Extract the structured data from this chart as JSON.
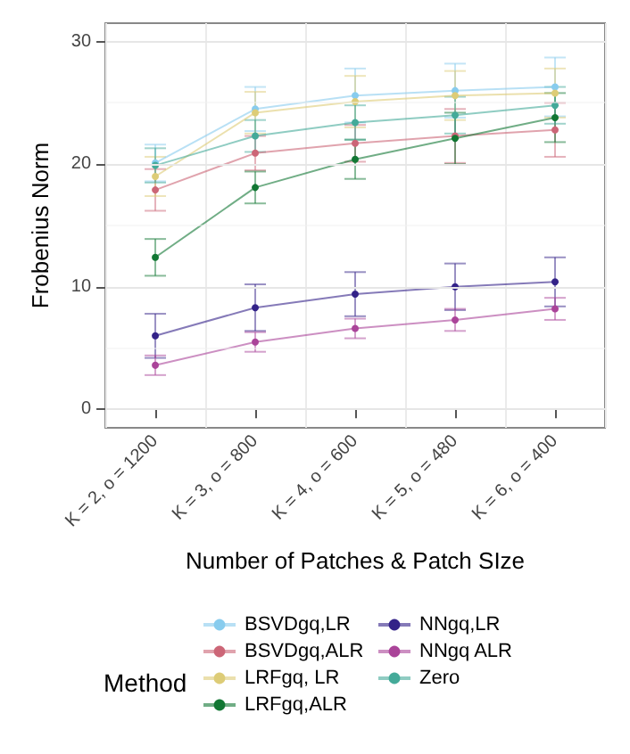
{
  "chart_data": {
    "type": "line",
    "xlabel": "Number of Patches & Patch SIze",
    "ylabel": "Frobenius Norm",
    "legend_title": "Method",
    "legend": "bottom",
    "grid": true,
    "marker": "circle",
    "line_style": "solid",
    "categories": [
      "K = 2, o = 1200",
      "K = 3, o = 800",
      "K = 4, o = 600",
      "K = 5, o = 480",
      "K = 6, o = 400"
    ],
    "ylim": [
      -1.5,
      31.5
    ],
    "yticks": [
      0,
      10,
      20,
      30
    ],
    "series": [
      {
        "name": "BSVDgq,LR",
        "color": "#88ccee",
        "values": [
          20.1,
          24.5,
          25.6,
          26.0,
          26.3
        ],
        "errors": [
          1.5,
          1.8,
          2.2,
          2.2,
          2.4
        ]
      },
      {
        "name": "BSVDgq,ALR",
        "color": "#cc6677",
        "values": [
          17.9,
          20.9,
          21.7,
          22.3,
          22.8
        ],
        "errors": [
          1.7,
          1.4,
          1.5,
          2.2,
          2.2
        ]
      },
      {
        "name": "LRFgq, LR",
        "color": "#ddcc77",
        "values": [
          19.0,
          24.2,
          25.1,
          25.6,
          25.8
        ],
        "errors": [
          1.6,
          1.7,
          2.1,
          2.0,
          2.0
        ]
      },
      {
        "name": "LRFgq,ALR",
        "color": "#117733",
        "values": [
          12.4,
          18.1,
          20.4,
          22.1,
          23.8
        ],
        "errors": [
          1.5,
          1.3,
          1.6,
          2.1,
          2.0
        ]
      },
      {
        "name": "NNgq,LR",
        "color": "#332288",
        "values": [
          6.0,
          8.3,
          9.4,
          10.0,
          10.4
        ],
        "errors": [
          1.8,
          1.9,
          1.8,
          1.9,
          2.0
        ]
      },
      {
        "name": "NNgq ALR",
        "color": "#aa4499",
        "values": [
          3.6,
          5.5,
          6.6,
          7.3,
          8.2
        ],
        "errors": [
          0.8,
          0.8,
          0.8,
          0.9,
          0.9
        ]
      },
      {
        "name": "Zero",
        "color": "#44aa99",
        "values": [
          19.9,
          22.3,
          23.4,
          24.0,
          24.8
        ],
        "errors": [
          1.4,
          1.3,
          1.4,
          1.5,
          1.5
        ]
      }
    ]
  }
}
